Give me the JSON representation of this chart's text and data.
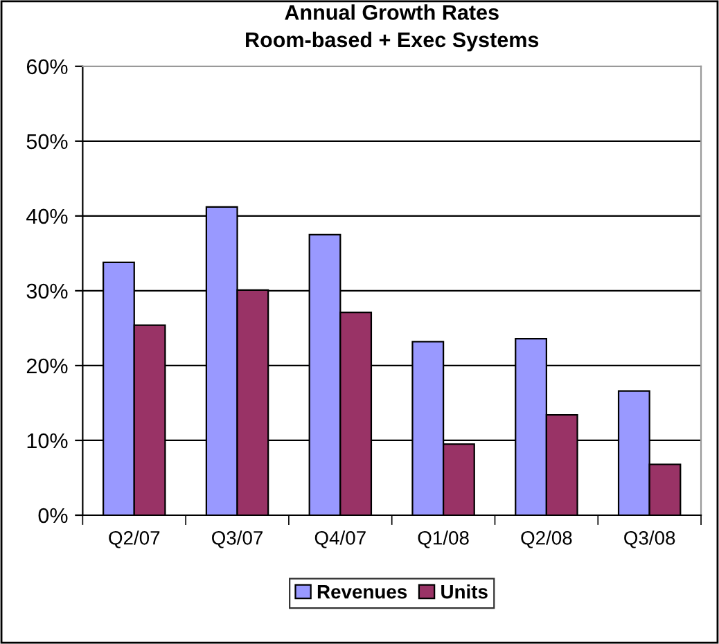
{
  "chart_data": {
    "type": "bar",
    "title": "Annual Growth Rates\nRoom-based + Exec Systems",
    "categories": [
      "Q2/07",
      "Q3/07",
      "Q4/07",
      "Q1/08",
      "Q2/08",
      "Q3/08"
    ],
    "series": [
      {
        "name": "Revenues",
        "color": "#9999ff",
        "values": [
          33.8,
          41.2,
          37.5,
          23.2,
          23.6,
          16.6
        ]
      },
      {
        "name": "Units",
        "color": "#993366",
        "values": [
          25.4,
          30.1,
          27.1,
          9.5,
          13.4,
          6.8
        ]
      }
    ],
    "ylim": [
      0,
      60
    ],
    "yticks": [
      {
        "value": 0,
        "label": "0%"
      },
      {
        "value": 10,
        "label": "10%"
      },
      {
        "value": 20,
        "label": "20%"
      },
      {
        "value": 30,
        "label": "30%"
      },
      {
        "value": 40,
        "label": "40%"
      },
      {
        "value": 50,
        "label": "50%"
      },
      {
        "value": 60,
        "label": "60%"
      }
    ],
    "grid": "y",
    "legend": "bottom"
  }
}
